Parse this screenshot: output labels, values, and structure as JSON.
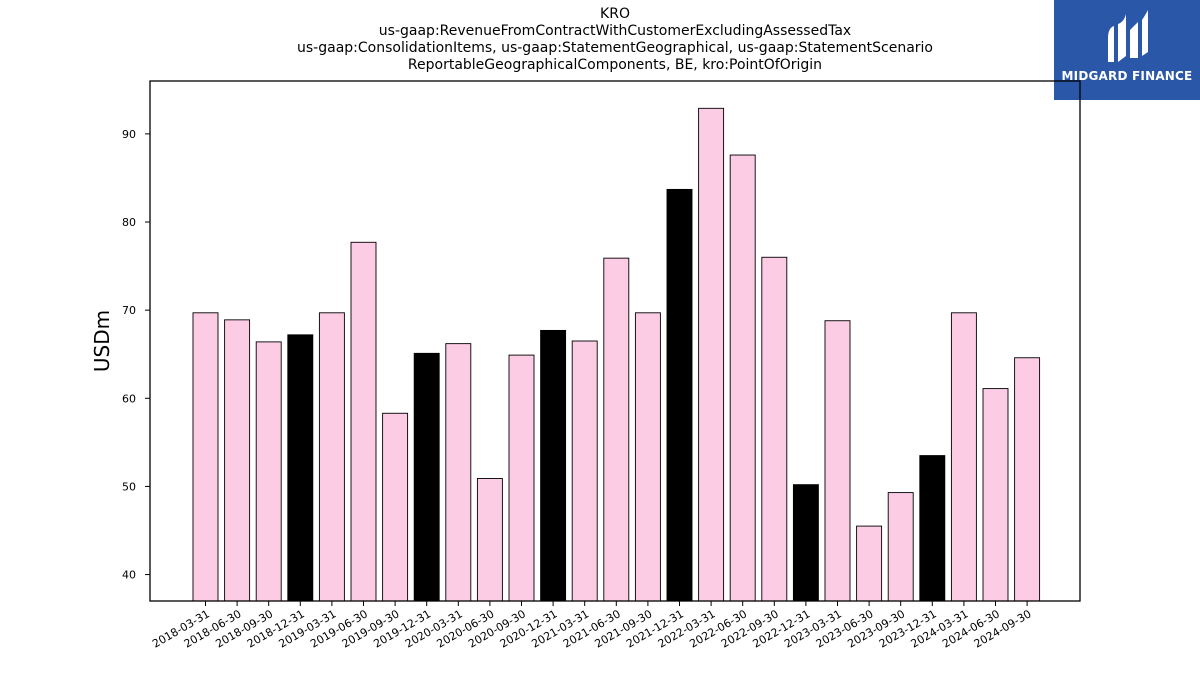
{
  "title_lines": [
    "KRO",
    "us-gaap:RevenueFromContractWithCustomerExcludingAssessedTax",
    "us-gaap:ConsolidationItems, us-gaap:StatementGeographical, us-gaap:StatementScenario",
    "ReportableGeographicalComponents, BE, kro:PointOfOrigin"
  ],
  "logo": {
    "text": "MIDGARD FINANCE",
    "color": "#2b57a8"
  },
  "colors": {
    "quarter_bar": "#fccce4",
    "year_end_bar": "#000000",
    "bar_edge": "#000000"
  },
  "chart_data": {
    "type": "bar",
    "title": "KRO",
    "xlabel": "",
    "ylabel": "USDm",
    "ylim": [
      37,
      96
    ],
    "yticks": [
      40,
      50,
      60,
      70,
      80,
      90
    ],
    "grid": false,
    "categories": [
      "2018-03-31",
      "2018-06-30",
      "2018-09-30",
      "2018-12-31",
      "2019-03-31",
      "2019-06-30",
      "2019-09-30",
      "2019-12-31",
      "2020-03-31",
      "2020-06-30",
      "2020-09-30",
      "2020-12-31",
      "2021-03-31",
      "2021-06-30",
      "2021-09-30",
      "2021-12-31",
      "2022-03-31",
      "2022-06-30",
      "2022-09-30",
      "2022-12-31",
      "2023-03-31",
      "2023-06-30",
      "2023-09-30",
      "2023-12-31",
      "2024-03-31",
      "2024-06-30",
      "2024-09-30"
    ],
    "values": [
      69.7,
      68.9,
      66.4,
      67.2,
      69.7,
      77.7,
      58.3,
      65.1,
      66.2,
      50.9,
      64.9,
      67.7,
      66.5,
      75.9,
      69.7,
      83.7,
      92.9,
      87.6,
      76.0,
      50.2,
      68.8,
      45.5,
      49.3,
      53.5,
      69.7,
      61.1,
      64.6
    ],
    "highlight": [
      false,
      false,
      false,
      true,
      false,
      false,
      false,
      true,
      false,
      false,
      false,
      true,
      false,
      false,
      false,
      true,
      false,
      false,
      false,
      true,
      false,
      false,
      false,
      true,
      false,
      false,
      false
    ]
  }
}
